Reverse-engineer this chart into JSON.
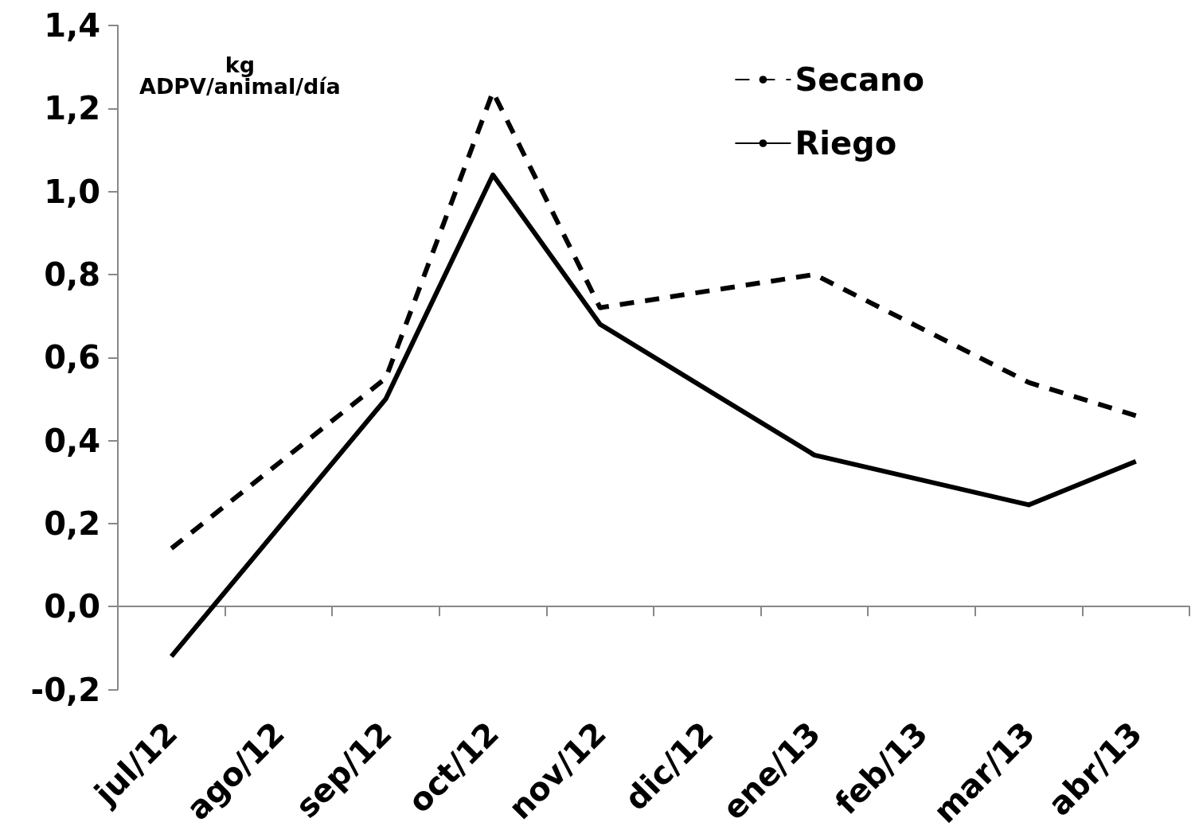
{
  "chart_data": {
    "type": "line",
    "ylabel": "kg\nADPV/animal/día",
    "categories": [
      "jul/12",
      "ago/12",
      "sep/12",
      "oct/12",
      "nov/12",
      "dic/12",
      "ene/13",
      "feb/13",
      "mar/13",
      "abr/13"
    ],
    "series": [
      {
        "name": "Secano",
        "color": "#000000",
        "line_style": "dashed",
        "values": [
          0.14,
          null,
          0.55,
          1.24,
          0.72,
          null,
          0.8,
          null,
          0.54,
          0.46
        ]
      },
      {
        "name": "Riego",
        "color": "#000000",
        "line_style": "solid",
        "values": [
          -0.12,
          null,
          0.5,
          1.04,
          0.68,
          null,
          0.365,
          null,
          0.245,
          0.35
        ]
      }
    ],
    "ylim": [
      -0.2,
      1.4
    ],
    "yticks": [
      {
        "value": -0.2,
        "label": "-0,2"
      },
      {
        "value": 0,
        "label": "0,0"
      },
      {
        "value": 0.2,
        "label": "0,2"
      },
      {
        "value": 0.4,
        "label": "0,4"
      },
      {
        "value": 0.6,
        "label": "0,6"
      },
      {
        "value": 0.8,
        "label": "0,8"
      },
      {
        "value": 1,
        "label": "1,0"
      },
      {
        "value": 1.2,
        "label": "1,2"
      },
      {
        "value": 1.4,
        "label": "1,4"
      }
    ],
    "marker": "none",
    "legend": "top right"
  }
}
